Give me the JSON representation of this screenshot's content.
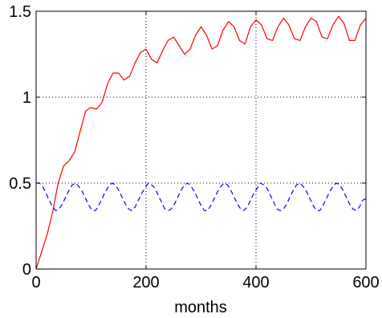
{
  "chart_data": {
    "type": "line",
    "title": "",
    "xlabel": "months",
    "ylabel": "",
    "xlim": [
      0,
      600
    ],
    "ylim": [
      0,
      1.5
    ],
    "x_ticks": [
      0,
      200,
      400,
      600
    ],
    "x_tick_labels": [
      "0",
      "200",
      "400",
      "600"
    ],
    "y_ticks": [
      0,
      0.5,
      1,
      1.5
    ],
    "y_tick_labels": [
      "0",
      "0.5",
      "1",
      "1.5"
    ],
    "grid": true,
    "series": [
      {
        "color": "#ff0000",
        "style": "solid",
        "x": [
          0,
          10,
          20,
          30,
          40,
          50,
          60,
          70,
          80,
          90,
          100,
          110,
          120,
          130,
          140,
          150,
          160,
          170,
          180,
          190,
          200,
          210,
          220,
          230,
          240,
          250,
          260,
          270,
          280,
          290,
          300,
          310,
          320,
          330,
          340,
          350,
          360,
          370,
          380,
          390,
          400,
          410,
          420,
          430,
          440,
          450,
          460,
          470,
          480,
          490,
          500,
          510,
          520,
          530,
          540,
          550,
          560,
          570,
          580,
          590,
          600
        ],
        "y": [
          0,
          0.1,
          0.2,
          0.33,
          0.5,
          0.6,
          0.63,
          0.68,
          0.8,
          0.92,
          0.94,
          0.93,
          0.97,
          1.08,
          1.14,
          1.14,
          1.1,
          1.12,
          1.2,
          1.26,
          1.28,
          1.22,
          1.2,
          1.27,
          1.33,
          1.35,
          1.3,
          1.25,
          1.28,
          1.36,
          1.41,
          1.36,
          1.28,
          1.3,
          1.39,
          1.44,
          1.41,
          1.33,
          1.31,
          1.41,
          1.45,
          1.42,
          1.34,
          1.33,
          1.41,
          1.46,
          1.42,
          1.34,
          1.33,
          1.41,
          1.46,
          1.44,
          1.35,
          1.34,
          1.42,
          1.47,
          1.43,
          1.33,
          1.33,
          1.42,
          1.46
        ]
      },
      {
        "color": "#0000ff",
        "style": "dashed",
        "x": [
          0,
          6,
          12,
          18,
          24,
          30,
          36,
          42,
          48,
          54,
          60,
          66,
          72,
          78,
          84,
          90,
          96,
          102,
          108,
          114,
          120,
          126,
          132,
          138,
          144,
          150,
          156,
          162,
          168,
          174,
          180,
          186,
          192,
          198,
          204,
          210,
          216,
          222,
          228,
          234,
          240,
          246,
          252,
          258,
          264,
          270,
          276,
          282,
          288,
          294,
          300,
          306,
          312,
          318,
          324,
          330,
          336,
          342,
          348,
          354,
          360,
          366,
          372,
          378,
          384,
          390,
          396,
          402,
          408,
          414,
          420,
          426,
          432,
          438,
          444,
          450,
          456,
          462,
          468,
          474,
          480,
          486,
          492,
          498,
          504,
          510,
          516,
          522,
          528,
          534,
          540,
          546,
          552,
          558,
          564,
          570,
          576,
          582,
          588,
          594,
          600
        ],
        "y": [
          0.5,
          0.5,
          0.48,
          0.44,
          0.4,
          0.36,
          0.34,
          0.35,
          0.38,
          0.42,
          0.46,
          0.49,
          0.5,
          0.48,
          0.45,
          0.41,
          0.37,
          0.34,
          0.34,
          0.37,
          0.41,
          0.45,
          0.48,
          0.5,
          0.49,
          0.46,
          0.42,
          0.38,
          0.35,
          0.34,
          0.36,
          0.4,
          0.44,
          0.47,
          0.5,
          0.49,
          0.47,
          0.43,
          0.39,
          0.35,
          0.34,
          0.35,
          0.38,
          0.42,
          0.46,
          0.49,
          0.5,
          0.48,
          0.45,
          0.41,
          0.37,
          0.34,
          0.34,
          0.37,
          0.41,
          0.45,
          0.48,
          0.5,
          0.49,
          0.46,
          0.42,
          0.38,
          0.35,
          0.34,
          0.36,
          0.4,
          0.44,
          0.47,
          0.5,
          0.49,
          0.47,
          0.43,
          0.39,
          0.35,
          0.34,
          0.35,
          0.38,
          0.42,
          0.46,
          0.49,
          0.5,
          0.48,
          0.45,
          0.41,
          0.37,
          0.34,
          0.34,
          0.37,
          0.41,
          0.45,
          0.48,
          0.5,
          0.49,
          0.46,
          0.42,
          0.38,
          0.35,
          0.34,
          0.36,
          0.4,
          0.41
        ]
      }
    ]
  }
}
